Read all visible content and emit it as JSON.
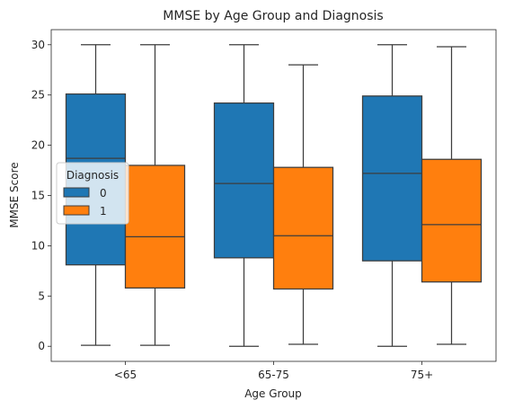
{
  "chart_data": {
    "type": "box",
    "title": "MMSE by Age Group and Diagnosis",
    "xlabel": "Age Group",
    "ylabel": "MMSE Score",
    "categories": [
      "<65",
      "65-75",
      "75+"
    ],
    "ylim": [
      -1.5,
      31.5
    ],
    "yticks": [
      0,
      5,
      10,
      15,
      20,
      25,
      30
    ],
    "legend": {
      "title": "Diagnosis",
      "placement": "center-left"
    },
    "series": [
      {
        "name": "0",
        "color": "#1f77b4",
        "boxes": [
          {
            "whisker_low": 0.1,
            "q1": 8.1,
            "median": 18.7,
            "q3": 25.1,
            "whisker_high": 30.0
          },
          {
            "whisker_low": 0.0,
            "q1": 8.8,
            "median": 16.2,
            "q3": 24.2,
            "whisker_high": 30.0
          },
          {
            "whisker_low": 0.0,
            "q1": 8.5,
            "median": 17.2,
            "q3": 24.9,
            "whisker_high": 30.0
          }
        ]
      },
      {
        "name": "1",
        "color": "#ff7f0e",
        "boxes": [
          {
            "whisker_low": 0.1,
            "q1": 5.8,
            "median": 10.9,
            "q3": 18.0,
            "whisker_high": 30.0
          },
          {
            "whisker_low": 0.2,
            "q1": 5.7,
            "median": 11.0,
            "q3": 17.8,
            "whisker_high": 28.0
          },
          {
            "whisker_low": 0.2,
            "q1": 6.4,
            "median": 12.1,
            "q3": 18.6,
            "whisker_high": 29.8
          }
        ]
      }
    ]
  }
}
